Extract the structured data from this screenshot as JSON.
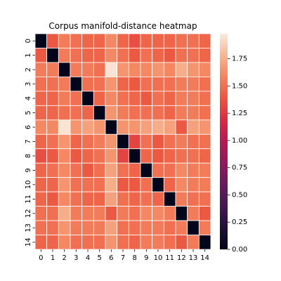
{
  "chart_data": {
    "type": "heatmap",
    "title": "Corpus manifold-distance heatmap",
    "xlabel": "",
    "ylabel": "",
    "x_tick_labels": [
      "0",
      "1",
      "2",
      "3",
      "4",
      "5",
      "6",
      "7",
      "8",
      "9",
      "10",
      "11",
      "12",
      "13",
      "14"
    ],
    "y_tick_labels": [
      "0",
      "1",
      "2",
      "3",
      "4",
      "5",
      "6",
      "7",
      "8",
      "9",
      "10",
      "11",
      "12",
      "13",
      "14"
    ],
    "values": [
      [
        0.0,
        1.4,
        1.55,
        1.5,
        1.45,
        1.45,
        1.6,
        1.45,
        1.35,
        1.45,
        1.45,
        1.45,
        1.5,
        1.5,
        1.45
      ],
      [
        1.4,
        0.0,
        1.55,
        1.5,
        1.45,
        1.45,
        1.6,
        1.5,
        1.4,
        1.5,
        1.45,
        1.4,
        1.5,
        1.5,
        1.45
      ],
      [
        1.55,
        1.55,
        0.0,
        1.55,
        1.55,
        1.5,
        1.95,
        1.65,
        1.6,
        1.6,
        1.65,
        1.6,
        1.75,
        1.65,
        1.6
      ],
      [
        1.5,
        1.5,
        1.55,
        0.0,
        1.5,
        1.5,
        1.65,
        1.45,
        1.4,
        1.5,
        1.5,
        1.5,
        1.55,
        1.55,
        1.5
      ],
      [
        1.45,
        1.45,
        1.55,
        1.5,
        0.0,
        1.45,
        1.6,
        1.5,
        1.45,
        1.4,
        1.5,
        1.45,
        1.55,
        1.55,
        1.5
      ],
      [
        1.45,
        1.45,
        1.5,
        1.5,
        1.45,
        0.0,
        1.65,
        1.55,
        1.5,
        1.5,
        1.5,
        1.45,
        1.55,
        1.55,
        1.5
      ],
      [
        1.6,
        1.6,
        1.95,
        1.65,
        1.7,
        1.65,
        0.0,
        1.65,
        1.65,
        1.7,
        1.75,
        1.7,
        1.4,
        1.7,
        1.65
      ],
      [
        1.45,
        1.5,
        1.65,
        1.45,
        1.5,
        1.55,
        1.65,
        0.0,
        1.3,
        1.5,
        1.4,
        1.5,
        1.55,
        1.5,
        1.5
      ],
      [
        1.35,
        1.4,
        1.6,
        1.4,
        1.45,
        1.5,
        1.65,
        1.3,
        0.0,
        1.45,
        1.4,
        1.45,
        1.5,
        1.5,
        1.45
      ],
      [
        1.45,
        1.5,
        1.6,
        1.5,
        1.4,
        1.5,
        1.7,
        1.5,
        1.45,
        0.0,
        1.5,
        1.5,
        1.6,
        1.55,
        1.55
      ],
      [
        1.45,
        1.45,
        1.65,
        1.5,
        1.5,
        1.5,
        1.75,
        1.4,
        1.4,
        1.5,
        0.0,
        1.45,
        1.6,
        1.55,
        1.55
      ],
      [
        1.45,
        1.4,
        1.6,
        1.5,
        1.45,
        1.45,
        1.7,
        1.5,
        1.45,
        1.5,
        1.45,
        0.0,
        1.55,
        1.5,
        1.5
      ],
      [
        1.5,
        1.5,
        1.75,
        1.55,
        1.55,
        1.55,
        1.4,
        1.55,
        1.5,
        1.6,
        1.6,
        1.55,
        0.0,
        1.55,
        1.4
      ],
      [
        1.5,
        1.5,
        1.65,
        1.55,
        1.55,
        1.55,
        1.7,
        1.5,
        1.5,
        1.55,
        1.55,
        1.5,
        1.55,
        0.0,
        1.55
      ],
      [
        1.45,
        1.45,
        1.6,
        1.5,
        1.5,
        1.5,
        1.65,
        1.5,
        1.45,
        1.55,
        1.55,
        1.5,
        1.4,
        1.55,
        0.0
      ]
    ],
    "color_scale": {
      "colormap": "rocket",
      "vmin": 0.0,
      "vmax": 1.98,
      "ticks": [
        0.0,
        0.25,
        0.5,
        0.75,
        1.0,
        1.25,
        1.5,
        1.75
      ],
      "tick_labels": [
        "0.00",
        "0.25",
        "0.50",
        "0.75",
        "1.00",
        "1.25",
        "1.50",
        "1.75"
      ]
    },
    "cell_border_color": "#ffffff",
    "grid": false,
    "legend": "colorbar-right"
  }
}
